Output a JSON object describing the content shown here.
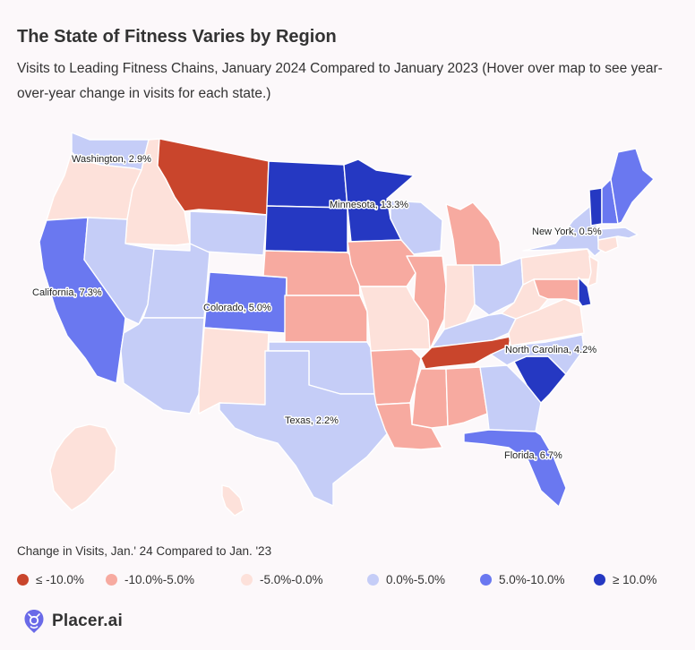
{
  "header": {
    "title": "The State of Fitness Varies by Region",
    "subtitle": "Visits to Leading Fitness Chains, January 2024 Compared to January 2023 (Hover over map to see year-over-year change in visits for each state.)"
  },
  "colors": {
    "bin_le_minus10": "#c9452c",
    "bin_minus10_minus5": "#f7aaa0",
    "bin_minus5_0": "#fde1da",
    "bin_0_5": "#c5cdf7",
    "bin_5_10": "#6a78f0",
    "bin_ge_10": "#2538c2"
  },
  "legend": {
    "title": "Change in Visits, Jan.' 24 Compared to Jan. '23",
    "items": [
      {
        "label": "≤ -10.0%",
        "color": "#c9452c"
      },
      {
        "label": "-10.0%-5.0%",
        "color": "#f7aaa0"
      },
      {
        "label": "-5.0%-0.0%",
        "color": "#fde1da"
      },
      {
        "label": "0.0%-5.0%",
        "color": "#c5cdf7"
      },
      {
        "label": "5.0%-10.0%",
        "color": "#6a78f0"
      },
      {
        "label": "≥ 10.0%",
        "color": "#2538c2"
      }
    ]
  },
  "map_labels": {
    "washington": "Washington, 2.9%",
    "minnesota": "Minnesota, 13.3%",
    "new_york": "New York, 0.5%",
    "california": "California, 7.3%",
    "colorado": "Colorado, 5.0%",
    "north_carolina": "North Carolina, 4.2%",
    "texas": "Texas, 2.2%",
    "florida": "Florida, 6.7%"
  },
  "states": {
    "WA": "bin_0_5",
    "OR": "bin_minus5_0",
    "CA": "bin_5_10",
    "ID": "bin_minus5_0",
    "NV": "bin_0_5",
    "MT": "bin_le_minus10",
    "WY": "bin_0_5",
    "UT": "bin_0_5",
    "AZ": "bin_0_5",
    "CO": "bin_5_10",
    "NM": "bin_minus5_0",
    "ND": "bin_ge_10",
    "SD": "bin_ge_10",
    "NE": "bin_minus10_minus5",
    "KS": "bin_minus10_minus5",
    "OK": "bin_0_5",
    "TX": "bin_0_5",
    "MN": "bin_ge_10",
    "IA": "bin_minus10_minus5",
    "MO": "bin_minus5_0",
    "AR": "bin_minus10_minus5",
    "LA": "bin_minus10_minus5",
    "WI": "bin_0_5",
    "IL": "bin_minus10_minus5",
    "MI": "bin_minus10_minus5",
    "IN": "bin_minus5_0",
    "OH": "bin_0_5",
    "KY": "bin_0_5",
    "TN": "bin_le_minus10",
    "MS": "bin_minus10_minus5",
    "AL": "bin_minus10_minus5",
    "GA": "bin_0_5",
    "FL": "bin_5_10",
    "SC": "bin_ge_10",
    "NC": "bin_0_5",
    "VA": "bin_minus5_0",
    "WV": "bin_minus5_0",
    "PA": "bin_minus5_0",
    "NY": "bin_0_5",
    "NJ": "bin_minus5_0",
    "MD": "bin_minus10_minus5",
    "DE": "bin_ge_10",
    "CT": "bin_minus5_0",
    "MA": "bin_0_5",
    "VT": "bin_ge_10",
    "NH": "bin_5_10",
    "ME": "bin_5_10",
    "AK": "bin_minus5_0",
    "HI": "bin_minus5_0"
  },
  "brand": {
    "name": "Placer.ai",
    "color": "#6a6ae8"
  }
}
